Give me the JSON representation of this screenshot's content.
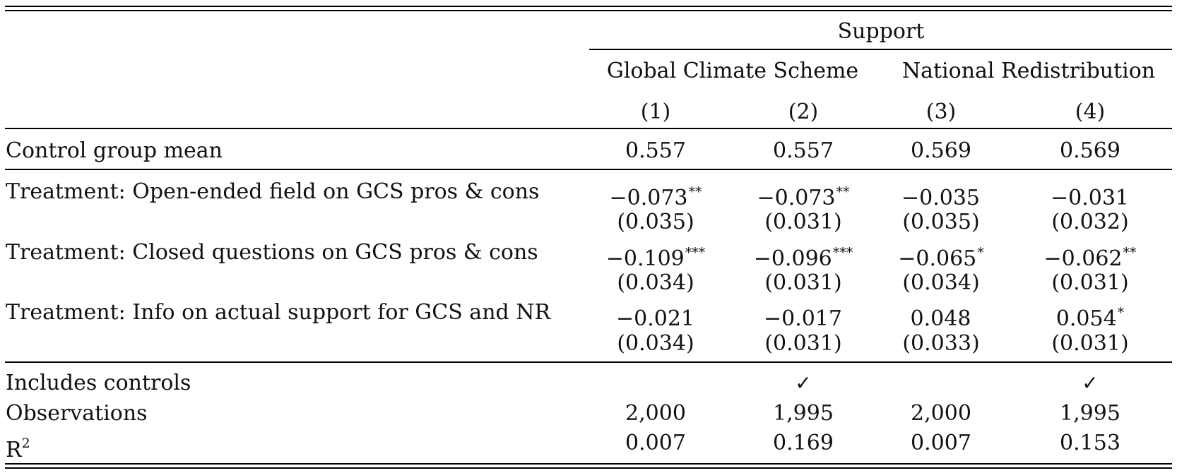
{
  "header": {
    "group": "Support",
    "subgroups": [
      "Global Climate Scheme",
      "National Redistribution"
    ],
    "columns": [
      "(1)",
      "(2)",
      "(3)",
      "(4)"
    ]
  },
  "control_row": {
    "label": "Control group mean",
    "values": [
      "0.557",
      "0.557",
      "0.569",
      "0.569"
    ]
  },
  "treatments": [
    {
      "label": "Treatment: Open-ended field on GCS pros & cons",
      "coef": [
        {
          "value": "−0.073",
          "stars": "**"
        },
        {
          "value": "−0.073",
          "stars": "**"
        },
        {
          "value": "−0.035",
          "stars": ""
        },
        {
          "value": "−0.031",
          "stars": ""
        }
      ],
      "se": [
        "(0.035)",
        "(0.031)",
        "(0.035)",
        "(0.032)"
      ]
    },
    {
      "label": "Treatment: Closed questions on GCS pros & cons",
      "coef": [
        {
          "value": "−0.109",
          "stars": "***"
        },
        {
          "value": "−0.096",
          "stars": "***"
        },
        {
          "value": "−0.065",
          "stars": "*"
        },
        {
          "value": "−0.062",
          "stars": "**"
        }
      ],
      "se": [
        "(0.034)",
        "(0.031)",
        "(0.034)",
        "(0.031)"
      ]
    },
    {
      "label": "Treatment: Info on actual support for GCS and NR",
      "coef": [
        {
          "value": "−0.021",
          "stars": ""
        },
        {
          "value": "−0.017",
          "stars": ""
        },
        {
          "value": "0.048",
          "stars": ""
        },
        {
          "value": "0.054",
          "stars": "*"
        }
      ],
      "se": [
        "(0.034)",
        "(0.031)",
        "(0.033)",
        "(0.031)"
      ]
    }
  ],
  "footer": {
    "controls_label": "Includes controls",
    "controls": [
      "",
      "✓",
      "",
      "✓"
    ],
    "obs_label": "Observations",
    "obs": [
      "2,000",
      "1,995",
      "2,000",
      "1,995"
    ],
    "r2_label": "R",
    "r2_sup": "2",
    "r2": [
      "0.007",
      "0.169",
      "0.007",
      "0.153"
    ]
  }
}
